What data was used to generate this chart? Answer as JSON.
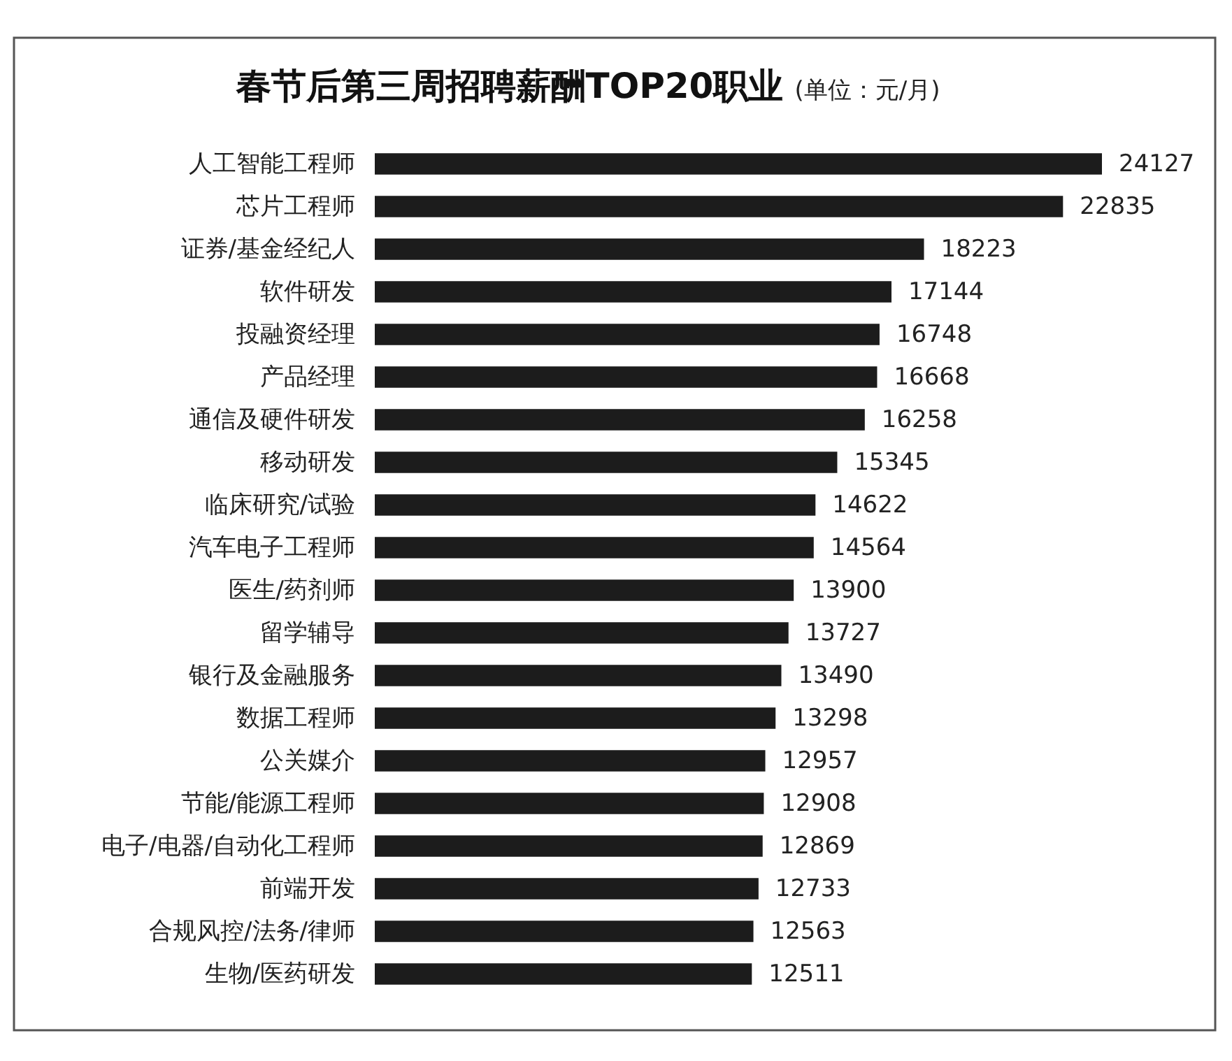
{
  "chart_data": {
    "type": "bar",
    "orientation": "horizontal",
    "title": "春节后第三周招聘薪酬TOP20职业",
    "subtitle": "(单位：元/月)",
    "categories": [
      "人工智能工程师",
      "芯片工程师",
      "证券/基金经纪人",
      "软件研发",
      "投融资经理",
      "产品经理",
      "通信及硬件研发",
      "移动研发",
      "临床研究/试验",
      "汽车电子工程师",
      "医生/药剂师",
      "留学辅导",
      "银行及金融服务",
      "数据工程师",
      "公关媒介",
      "节能/能源工程师",
      "电子/电器/自动化工程师",
      "前端开发",
      "合规风控/法务/律师",
      "生物/医药研发"
    ],
    "values": [
      24127,
      22835,
      18223,
      17144,
      16748,
      16668,
      16258,
      15345,
      14622,
      14564,
      13900,
      13727,
      13490,
      13298,
      12957,
      12908,
      12869,
      12733,
      12563,
      12511
    ],
    "color": "#1c1c1c",
    "data_labels": true
  }
}
